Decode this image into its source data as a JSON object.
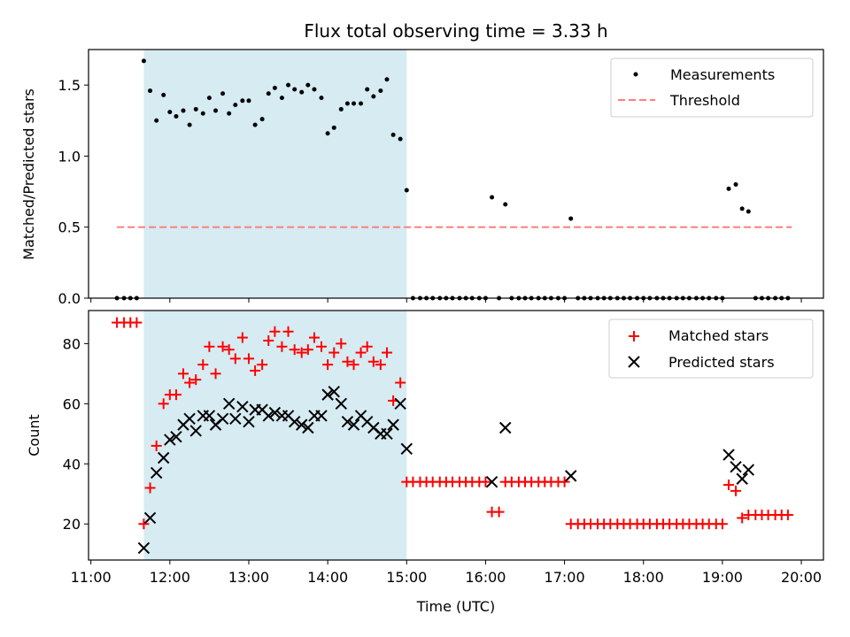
{
  "title": "Flux total observing time = 3.33 h",
  "colors": {
    "measurement": "#000000",
    "threshold": "#ff7f7f",
    "matched": "#ff0000",
    "predicted": "#000000",
    "highlight": "#add8e6"
  },
  "chart_data": [
    {
      "type": "scatter",
      "name": "ratio",
      "ylabel": "Matched/Predicted stars",
      "xlim": [
        10.97,
        20.28
      ],
      "ylim": [
        0,
        1.75
      ],
      "yticks": [
        0.0,
        0.5,
        1.0,
        1.5
      ],
      "ytick_labels": [
        "0.0",
        "0.5",
        "1.0",
        "1.5"
      ],
      "shaded_region": [
        11.67,
        15.0
      ],
      "legend": {
        "position": "upper right",
        "entries": [
          "Measurements",
          "Threshold"
        ]
      },
      "threshold": {
        "label": "Threshold",
        "value": 0.5,
        "x_range": [
          11.33,
          19.88
        ]
      },
      "series": [
        {
          "name": "Measurements",
          "marker": "dot",
          "x": [
            11.33,
            11.42,
            11.5,
            11.58,
            11.67,
            11.75,
            11.83,
            11.92,
            12.0,
            12.08,
            12.17,
            12.25,
            12.33,
            12.42,
            12.5,
            12.58,
            12.67,
            12.75,
            12.83,
            12.92,
            13.0,
            13.08,
            13.17,
            13.25,
            13.33,
            13.42,
            13.5,
            13.58,
            13.67,
            13.75,
            13.83,
            13.92,
            14.0,
            14.08,
            14.17,
            14.25,
            14.33,
            14.42,
            14.5,
            14.58,
            14.67,
            14.75,
            14.83,
            14.92,
            15.0,
            15.08,
            15.17,
            15.25,
            15.33,
            15.42,
            15.5,
            15.58,
            15.67,
            15.75,
            15.83,
            15.92,
            16.0,
            16.08,
            16.17,
            16.25,
            16.33,
            16.42,
            16.5,
            16.58,
            16.67,
            16.75,
            16.83,
            16.92,
            17.0,
            17.08,
            17.17,
            17.25,
            17.33,
            17.42,
            17.5,
            17.58,
            17.67,
            17.75,
            17.83,
            17.92,
            18.0,
            18.08,
            18.17,
            18.25,
            18.33,
            18.42,
            18.5,
            18.58,
            18.67,
            18.75,
            18.83,
            18.92,
            19.0,
            19.08,
            19.17,
            19.25,
            19.33,
            19.42,
            19.5,
            19.58,
            19.67,
            19.75,
            19.83
          ],
          "y": [
            0,
            0,
            0,
            0,
            1.67,
            1.46,
            1.25,
            1.43,
            1.31,
            1.28,
            1.32,
            1.22,
            1.33,
            1.3,
            1.41,
            1.32,
            1.44,
            1.3,
            1.36,
            1.39,
            1.39,
            1.22,
            1.26,
            1.44,
            1.48,
            1.41,
            1.5,
            1.47,
            1.45,
            1.5,
            1.47,
            1.41,
            1.16,
            1.2,
            1.33,
            1.37,
            1.37,
            1.37,
            1.47,
            1.42,
            1.46,
            1.54,
            1.15,
            1.12,
            0.76,
            0,
            0,
            0,
            0,
            0,
            0,
            0,
            0,
            0,
            0,
            0,
            0,
            0.71,
            0,
            0.66,
            0,
            0,
            0,
            0,
            0,
            0,
            0,
            0,
            0,
            0.56,
            0,
            0,
            0,
            0,
            0,
            0,
            0,
            0,
            0,
            0,
            0,
            0,
            0,
            0,
            0,
            0,
            0,
            0,
            0,
            0,
            0,
            0,
            0,
            0.77,
            0.8,
            0.63,
            0.61,
            0,
            0,
            0,
            0,
            0,
            0
          ]
        }
      ]
    },
    {
      "type": "scatter",
      "name": "counts",
      "ylabel": "Count",
      "xlabel": "Time (UTC)",
      "xlim": [
        10.97,
        20.28
      ],
      "ylim": [
        8,
        91
      ],
      "yticks": [
        20,
        40,
        60,
        80
      ],
      "ytick_labels": [
        "20",
        "40",
        "60",
        "80"
      ],
      "xticks": [
        11,
        12,
        13,
        14,
        15,
        16,
        17,
        18,
        19,
        20
      ],
      "xtick_labels": [
        "11:00",
        "12:00",
        "13:00",
        "14:00",
        "15:00",
        "16:00",
        "17:00",
        "18:00",
        "19:00",
        "20:00"
      ],
      "shaded_region": [
        11.67,
        15.0
      ],
      "legend": {
        "position": "upper right",
        "entries": [
          "Matched stars",
          "Predicted stars"
        ]
      },
      "series": [
        {
          "name": "Matched stars",
          "marker": "plus",
          "x": [
            11.33,
            11.42,
            11.5,
            11.58,
            11.67,
            11.75,
            11.83,
            11.92,
            12.0,
            12.08,
            12.17,
            12.25,
            12.33,
            12.42,
            12.5,
            12.58,
            12.67,
            12.75,
            12.83,
            12.92,
            13.0,
            13.08,
            13.17,
            13.25,
            13.33,
            13.42,
            13.5,
            13.58,
            13.67,
            13.75,
            13.83,
            13.92,
            14.0,
            14.08,
            14.17,
            14.25,
            14.33,
            14.42,
            14.5,
            14.58,
            14.67,
            14.75,
            14.83,
            14.92,
            15.0,
            15.08,
            15.17,
            15.25,
            15.33,
            15.42,
            15.5,
            15.58,
            15.67,
            15.75,
            15.83,
            15.92,
            16.0,
            16.08,
            16.17,
            16.25,
            16.33,
            16.42,
            16.5,
            16.58,
            16.67,
            16.75,
            16.83,
            16.92,
            17.0,
            17.08,
            17.17,
            17.25,
            17.33,
            17.42,
            17.5,
            17.58,
            17.67,
            17.75,
            17.83,
            17.92,
            18.0,
            18.08,
            18.17,
            18.25,
            18.33,
            18.42,
            18.5,
            18.58,
            18.67,
            18.75,
            18.83,
            18.92,
            19.0,
            19.08,
            19.17,
            19.25,
            19.33,
            19.42,
            19.5,
            19.58,
            19.67,
            19.75,
            19.83
          ],
          "y": [
            87,
            87,
            87,
            87,
            20,
            32,
            46,
            60,
            63,
            63,
            70,
            67,
            68,
            73,
            79,
            70,
            79,
            78,
            75,
            82,
            75,
            71,
            73,
            81,
            84,
            79,
            84,
            78,
            77,
            78,
            82,
            79,
            73,
            77,
            80,
            74,
            73,
            77,
            79,
            74,
            73,
            77,
            61,
            67,
            34,
            34,
            34,
            34,
            34,
            34,
            34,
            34,
            34,
            34,
            34,
            34,
            34,
            24,
            24,
            34,
            34,
            34,
            34,
            34,
            34,
            34,
            34,
            34,
            34,
            20,
            20,
            20,
            20,
            20,
            20,
            20,
            20,
            20,
            20,
            20,
            20,
            20,
            20,
            20,
            20,
            20,
            20,
            20,
            20,
            20,
            20,
            20,
            20,
            33,
            31,
            22,
            23,
            23,
            23,
            23,
            23,
            23,
            23
          ]
        },
        {
          "name": "Predicted stars",
          "marker": "x",
          "x": [
            11.67,
            11.75,
            11.83,
            11.92,
            12.0,
            12.08,
            12.17,
            12.25,
            12.33,
            12.42,
            12.5,
            12.58,
            12.67,
            12.75,
            12.83,
            12.92,
            13.0,
            13.08,
            13.17,
            13.25,
            13.33,
            13.42,
            13.5,
            13.58,
            13.67,
            13.75,
            13.83,
            13.92,
            14.0,
            14.08,
            14.17,
            14.25,
            14.33,
            14.42,
            14.5,
            14.58,
            14.67,
            14.75,
            14.83,
            14.92,
            15.0,
            16.08,
            16.25,
            17.08,
            19.08,
            19.17,
            19.25,
            19.33
          ],
          "y": [
            12,
            22,
            37,
            42,
            48,
            49,
            53,
            55,
            51,
            56,
            56,
            53,
            55,
            60,
            55,
            59,
            54,
            58,
            58,
            56,
            57,
            56,
            56,
            54,
            53,
            52,
            56,
            56,
            63,
            64,
            60,
            54,
            53,
            56,
            54,
            52,
            50,
            50,
            53,
            60,
            45,
            34,
            52,
            36,
            43,
            39,
            35,
            38
          ]
        }
      ]
    }
  ]
}
